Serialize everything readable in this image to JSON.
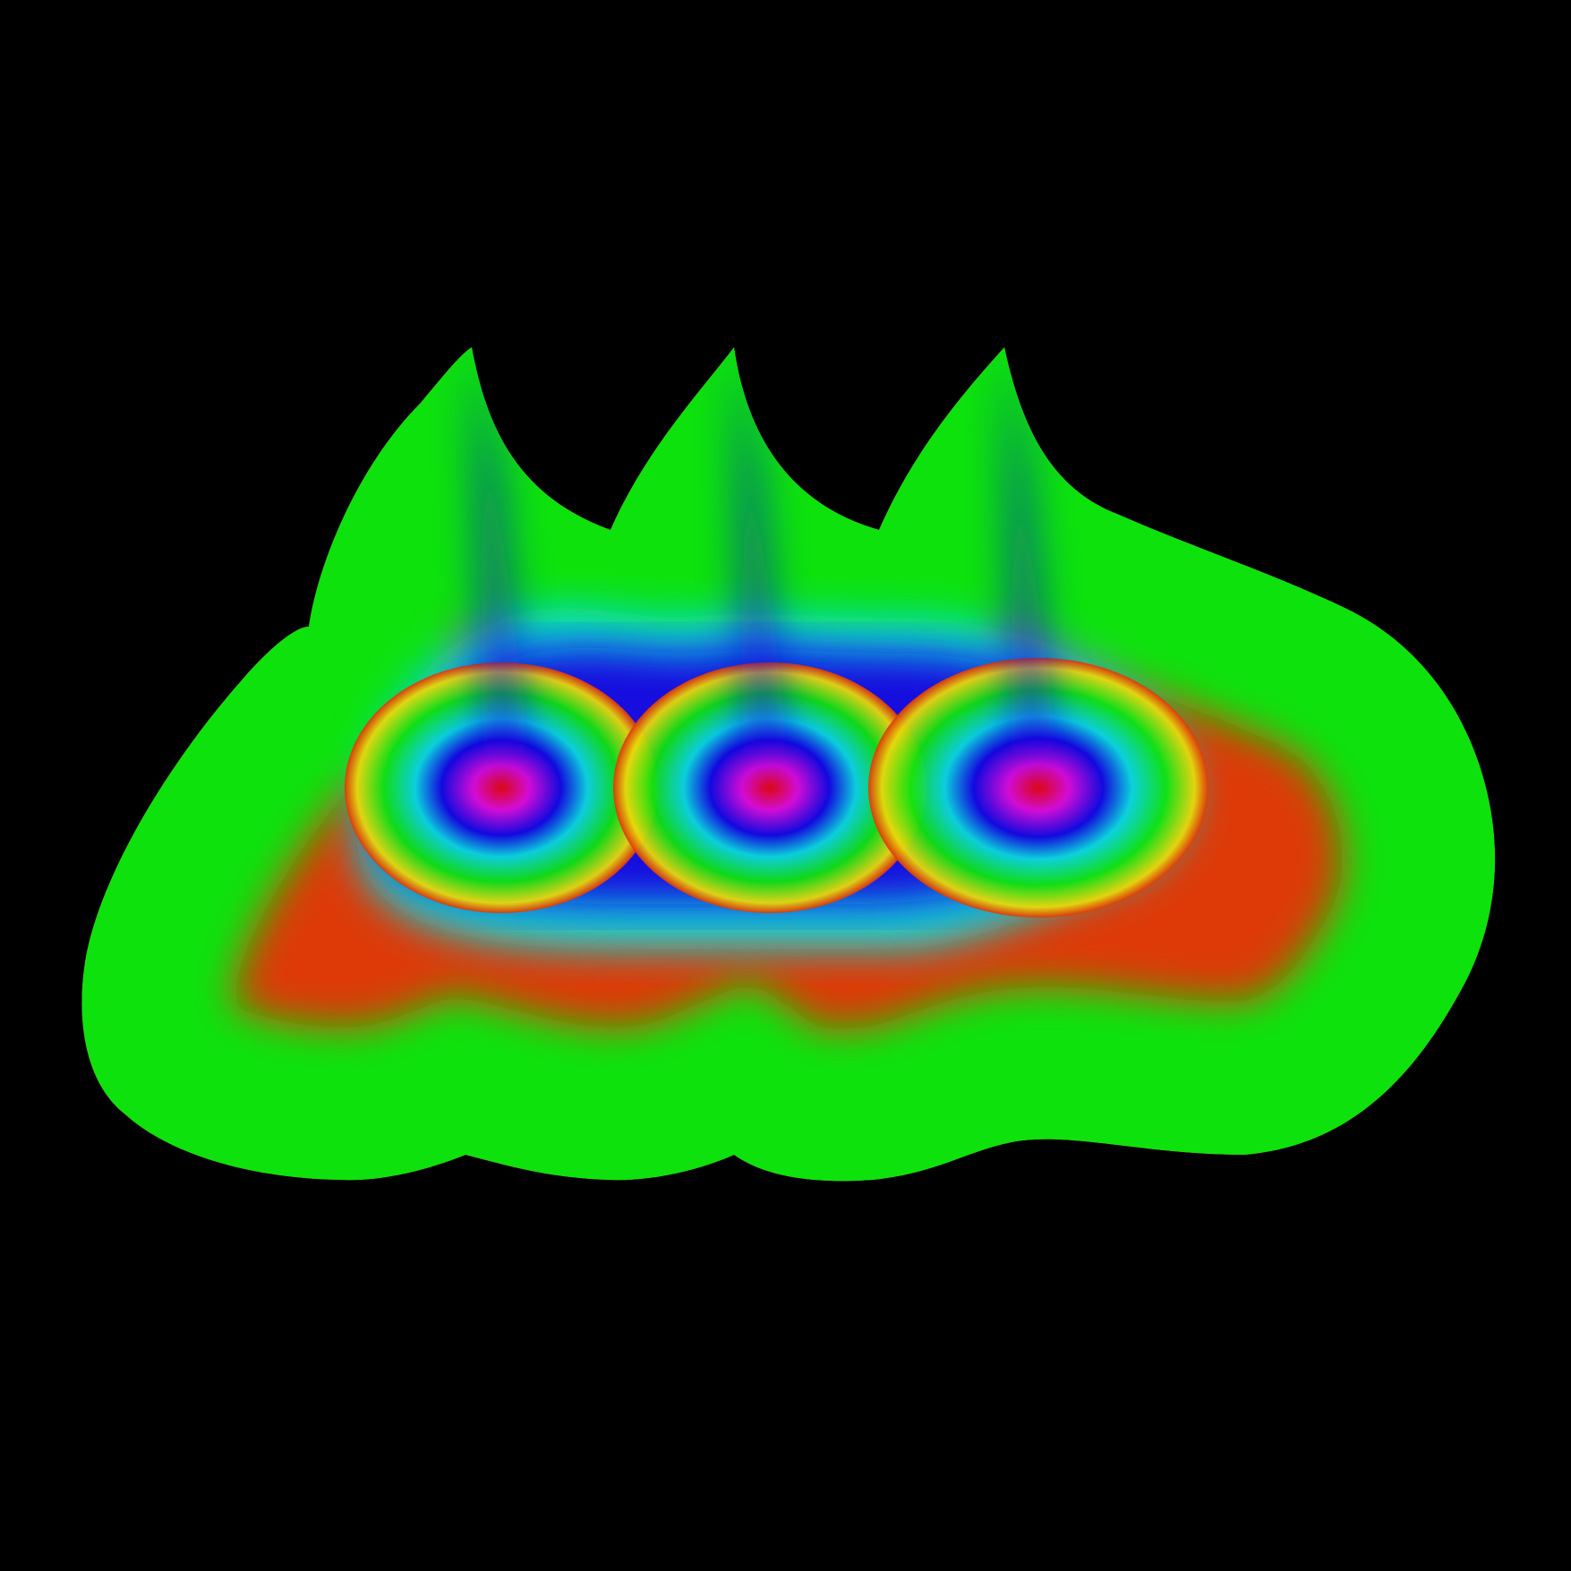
{
  "artwork": {
    "background_color": "#000000",
    "palette": [
      "#dd3a08",
      "#e8d80c",
      "#0fe20e",
      "#0bd7dc",
      "#1209de",
      "#dc0cd6",
      "#e80808"
    ],
    "band_colors_outer_to_inner": [
      "#dd3a08",
      "#e8d80c",
      "#0fe20e",
      "#0bd7dc",
      "#1209de",
      "#dc0cd6",
      "#e80808"
    ],
    "shape": "rainbow-banded-blob-with-three-peaks",
    "peak_count": 3
  }
}
